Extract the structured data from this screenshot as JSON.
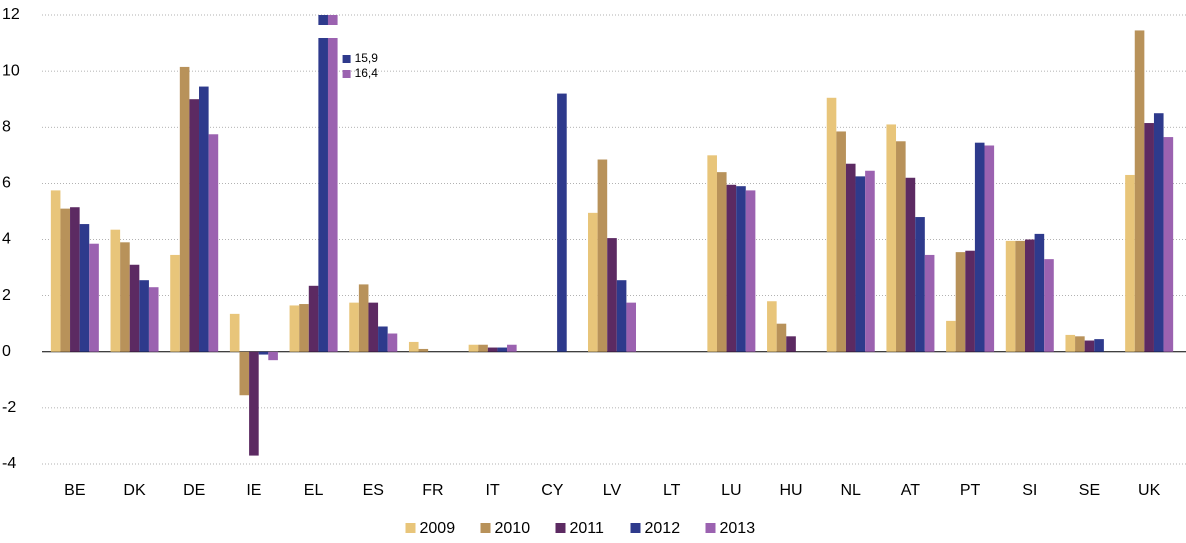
{
  "chart_data": {
    "type": "bar",
    "categories": [
      "BE",
      "DK",
      "DE",
      "IE",
      "EL",
      "ES",
      "FR",
      "IT",
      "CY",
      "LV",
      "LT",
      "LU",
      "HU",
      "NL",
      "AT",
      "PT",
      "SI",
      "SE",
      "UK"
    ],
    "series": [
      {
        "name": "2009",
        "color": "#e8c57a",
        "values": [
          5.75,
          4.35,
          3.45,
          1.35,
          1.65,
          1.75,
          0.35,
          0.25,
          null,
          4.95,
          null,
          7.0,
          1.8,
          9.05,
          8.1,
          1.1,
          3.95,
          0.6,
          6.3
        ]
      },
      {
        "name": "2010",
        "color": "#b8925a",
        "values": [
          5.1,
          3.9,
          10.15,
          -1.55,
          1.7,
          2.4,
          0.1,
          0.25,
          null,
          6.85,
          null,
          6.4,
          1.0,
          7.85,
          7.5,
          3.55,
          3.95,
          0.55,
          11.45
        ]
      },
      {
        "name": "2011",
        "color": "#5c2a62",
        "values": [
          5.15,
          3.1,
          9.0,
          -3.7,
          2.35,
          1.75,
          null,
          0.15,
          null,
          4.05,
          null,
          5.95,
          0.55,
          6.7,
          6.2,
          3.6,
          4.0,
          0.4,
          8.15
        ]
      },
      {
        "name": "2012",
        "color": "#2e3a8c",
        "values": [
          4.55,
          2.55,
          9.45,
          -0.1,
          15.9,
          0.9,
          null,
          0.15,
          9.2,
          2.55,
          null,
          5.9,
          null,
          6.25,
          4.8,
          7.45,
          4.2,
          0.45,
          8.5
        ],
        "value_labels": [
          null,
          null,
          null,
          null,
          "15,9",
          null,
          null,
          null,
          null,
          null,
          null,
          null,
          null,
          null,
          null,
          null,
          null,
          null,
          null
        ]
      },
      {
        "name": "2013",
        "color": "#9b62b0",
        "values": [
          3.85,
          2.3,
          7.75,
          -0.3,
          16.4,
          0.65,
          null,
          0.25,
          null,
          1.75,
          null,
          5.75,
          null,
          6.45,
          3.45,
          7.35,
          3.3,
          null,
          7.65
        ],
        "value_labels": [
          null,
          null,
          null,
          null,
          "16,4",
          null,
          null,
          null,
          null,
          null,
          null,
          null,
          null,
          null,
          null,
          null,
          null,
          null,
          null
        ]
      }
    ],
    "ylim": [
      -4,
      12
    ],
    "yticks": [
      -4,
      -2,
      0,
      2,
      4,
      6,
      8,
      10,
      12
    ],
    "grid": true
  }
}
